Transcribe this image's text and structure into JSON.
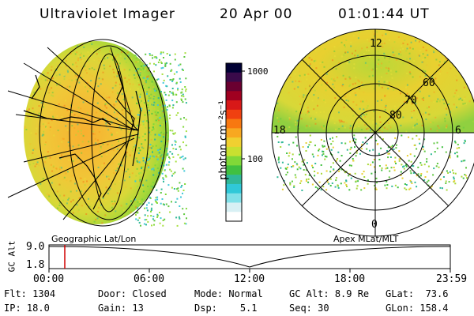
{
  "header": {
    "title": "Ultraviolet Imager",
    "date": "20 Apr 00",
    "time": "01:01:44 UT"
  },
  "colorbar": {
    "label": "photon cm⁻²s⁻¹",
    "ticks": [
      "1000",
      "100"
    ],
    "colors": [
      "#000033",
      "#3a0a4a",
      "#6a0030",
      "#a00020",
      "#d81818",
      "#f04010",
      "#f87810",
      "#f8a820",
      "#f0d030",
      "#c8e030",
      "#80d838",
      "#40c040",
      "#30b898",
      "#30c8d8",
      "#80e0e8",
      "#d8f0f4",
      "#ffffff"
    ]
  },
  "polar": {
    "ring_labels": [
      "60",
      "70",
      "80"
    ],
    "mlt_labels": [
      "12",
      "18",
      "6",
      "0"
    ]
  },
  "timeline": {
    "y_axis_label": "GC Alt",
    "y_ticks": [
      "9.0",
      "1.8"
    ],
    "left_caption": "Geographic Lat/Lon",
    "right_caption": "Apex MLat/MLT",
    "x_ticks": [
      "00:00",
      "06:00",
      "12:00",
      "18:00",
      "23:59"
    ],
    "marker_color": "#d00000"
  },
  "info": {
    "flt_label": "Flt:",
    "flt_value": "1304",
    "ip_label": "IP:",
    "ip_value": "18.0",
    "door_label": "Door:",
    "door_value": "Closed",
    "gain_label": "Gain:",
    "gain_value": "13",
    "mode_label": "Mode:",
    "mode_value": "Normal",
    "dsp_label": "Dsp:",
    "dsp_value": "5.1",
    "gcalt_label": "GC Alt:",
    "gcalt_value": "8.9 Re",
    "seq_label": "Seq:",
    "seq_value": "30",
    "glat_label": "GLat:",
    "glat_value": "73.6",
    "glon_label": "GLon:",
    "glon_value": "158.4"
  }
}
